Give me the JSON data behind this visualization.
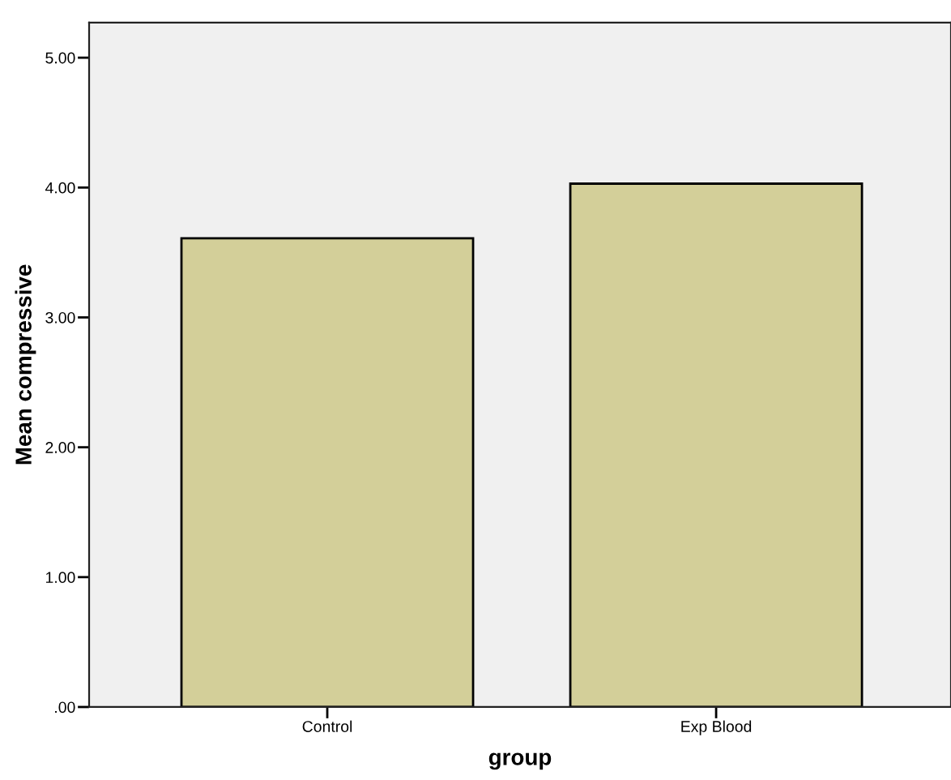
{
  "chart_data": {
    "type": "bar",
    "xlabel": "group",
    "ylabel": "Mean compressive",
    "categories": [
      "Control",
      "Exp Blood"
    ],
    "values": [
      3.61,
      4.03
    ],
    "color": "#d3cf99",
    "ylim": [
      0,
      5.27
    ],
    "yticks": [
      {
        "value": 0,
        "label": ".00"
      },
      {
        "value": 1,
        "label": "1.00"
      },
      {
        "value": 2,
        "label": "2.00"
      },
      {
        "value": 3,
        "label": "3.00"
      },
      {
        "value": 4,
        "label": "4.00"
      },
      {
        "value": 5,
        "label": "5.00"
      }
    ],
    "grid": false,
    "legend": false
  }
}
